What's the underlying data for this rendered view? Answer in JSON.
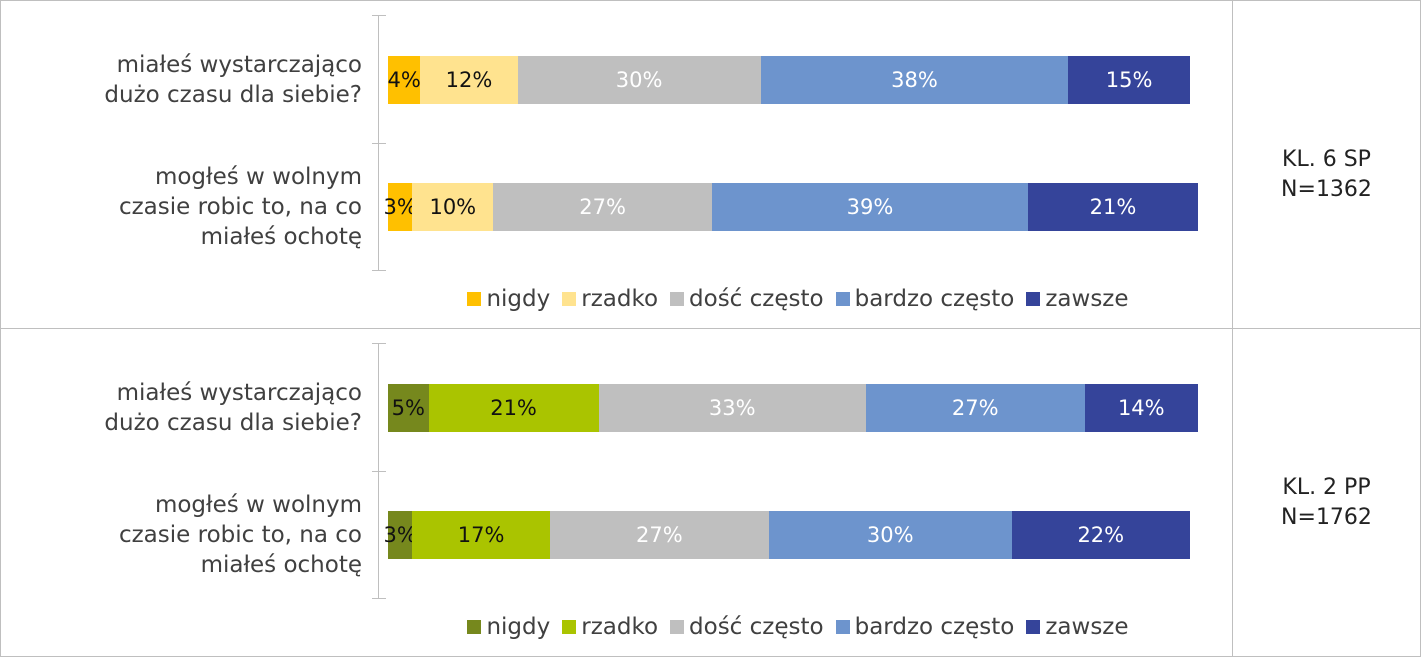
{
  "chart_data": [
    {
      "type": "stacked-barh",
      "group_label": [
        "KL. 6 SP",
        "N=1362"
      ],
      "categories": [
        [
          "miałeś wystarczająco",
          "dużo czasu dla siebie?"
        ],
        [
          "mogłeś w wolnym",
          "czasie robic to, na co",
          "miałeś ochotę"
        ]
      ],
      "xlim": [
        0,
        100
      ],
      "series": [
        {
          "name": "nigdy",
          "color": "#ffc000",
          "values": [
            4,
            3
          ],
          "value_labels": [
            "4%",
            "3%"
          ]
        },
        {
          "name": "rzadko",
          "color": "#ffe38f",
          "values": [
            12,
            10
          ],
          "value_labels": [
            "12%",
            "10%"
          ]
        },
        {
          "name": "dość często",
          "color": "#bfbfbf",
          "values": [
            30,
            27
          ],
          "value_labels": [
            "30%",
            "27%"
          ]
        },
        {
          "name": "bardzo często",
          "color": "#6d94cd",
          "values": [
            38,
            39
          ],
          "value_labels": [
            "38%",
            "39%"
          ]
        },
        {
          "name": "zawsze",
          "color": "#35449a",
          "values": [
            15,
            21
          ],
          "value_labels": [
            "15%",
            "21%"
          ]
        }
      ]
    },
    {
      "type": "stacked-barh",
      "group_label": [
        "KL. 2 PP",
        "N=1762"
      ],
      "categories": [
        [
          "miałeś wystarczająco",
          "dużo czasu dla siebie?"
        ],
        [
          "mogłeś w wolnym",
          "czasie robic to, na co",
          "miałeś ochotę"
        ]
      ],
      "xlim": [
        0,
        100
      ],
      "series": [
        {
          "name": "nigdy",
          "color": "#76881d",
          "values": [
            5,
            3
          ],
          "value_labels": [
            "5%",
            "3%"
          ]
        },
        {
          "name": "rzadko",
          "color": "#aac400",
          "values": [
            21,
            17
          ],
          "value_labels": [
            "21%",
            "17%"
          ]
        },
        {
          "name": "dość często",
          "color": "#bfbfbf",
          "values": [
            33,
            27
          ],
          "value_labels": [
            "33%",
            "27%"
          ]
        },
        {
          "name": "bardzo często",
          "color": "#6d94cd",
          "values": [
            27,
            30
          ],
          "value_labels": [
            "27%",
            "30%"
          ]
        },
        {
          "name": "zawsze",
          "color": "#35449a",
          "values": [
            14,
            22
          ],
          "value_labels": [
            "14%",
            "22%"
          ]
        }
      ]
    }
  ]
}
